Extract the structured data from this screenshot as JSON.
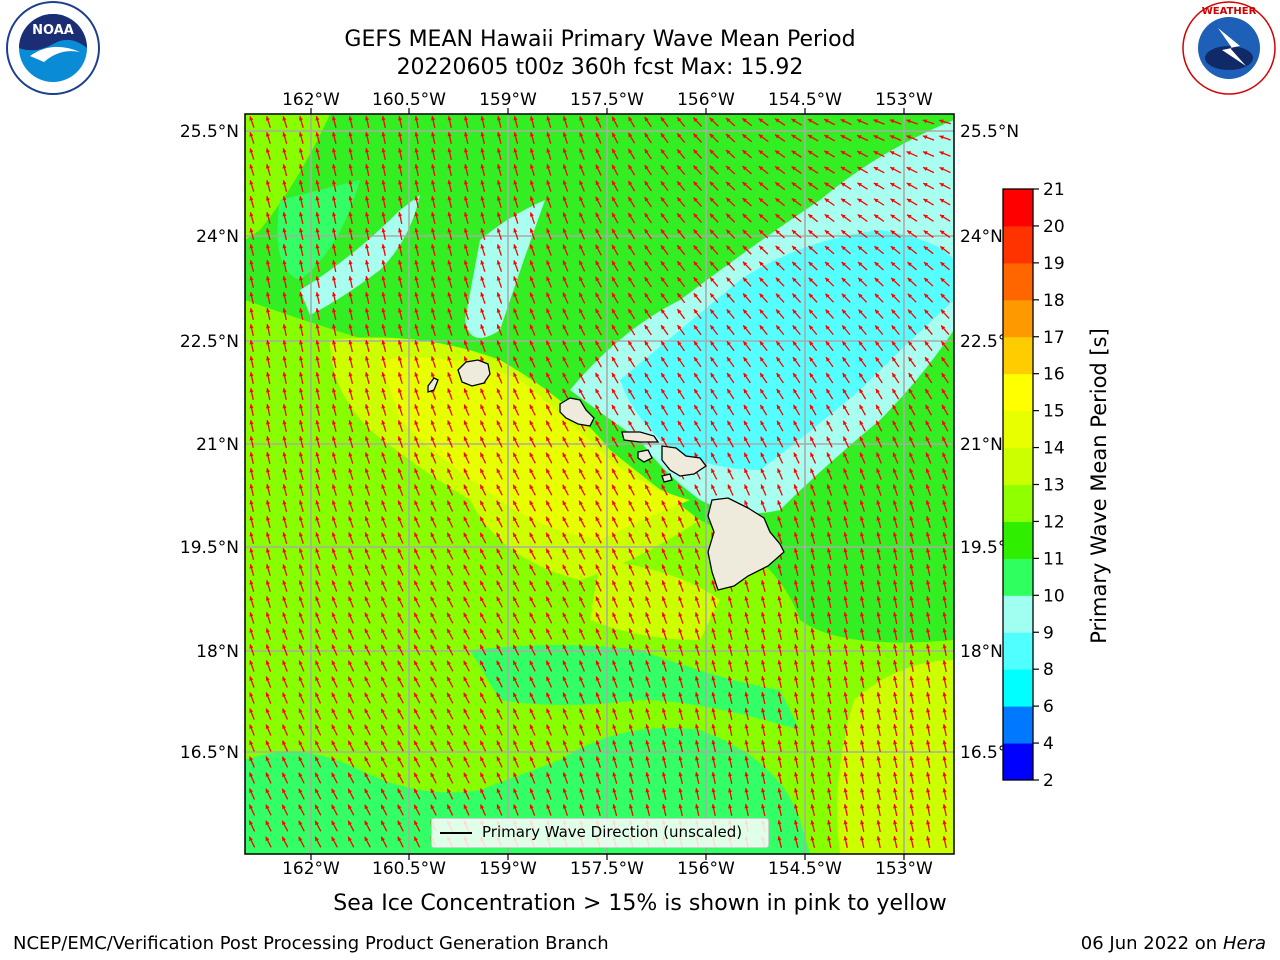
{
  "header": {
    "title_line1": "GEFS MEAN Hawaii Primary Wave Mean Period",
    "title_line2": "20220605 t00z 360h fcst   Max: 15.92",
    "left_logo": "noaa-logo",
    "right_logo": "national-weather-service-logo"
  },
  "map": {
    "lon_ticks": [
      "162°W",
      "160.5°W",
      "159°W",
      "157.5°W",
      "156°W",
      "154.5°W",
      "153°W"
    ],
    "lat_ticks": [
      "25.5°N",
      "24°N",
      "22.5°N",
      "21°N",
      "19.5°N",
      "18°N",
      "16.5°N"
    ],
    "lon_range": [
      -163.0,
      -152.7
    ],
    "lat_range": [
      15.2,
      26.0
    ],
    "land_color": "#efebdc",
    "arrow_color": "#ff0000",
    "grid": true
  },
  "colorbar": {
    "label": "Primary Wave Mean Period [s]",
    "levels": [
      "2",
      "4",
      "6",
      "8",
      "9",
      "10",
      "11",
      "12",
      "13",
      "14",
      "15",
      "16",
      "17",
      "18",
      "19",
      "20",
      "21"
    ],
    "colors": [
      "#0000ff",
      "#0078ff",
      "#00ffff",
      "#50ffff",
      "#a0fff0",
      "#30ff60",
      "#30ee00",
      "#90ff00",
      "#ccff00",
      "#e8ff00",
      "#ffff00",
      "#ffcc00",
      "#ff9900",
      "#ff6600",
      "#ff3300",
      "#ff0000"
    ]
  },
  "legend": {
    "label": "Primary Wave Direction (unscaled)"
  },
  "subtitle": "Sea Ice Concentration > 15% is shown in pink to yellow",
  "footer": {
    "left": "NCEP/EMC/Verification Post Processing Product Generation Branch",
    "right_date": "06 Jun 2022 on",
    "right_host": "Hera"
  }
}
